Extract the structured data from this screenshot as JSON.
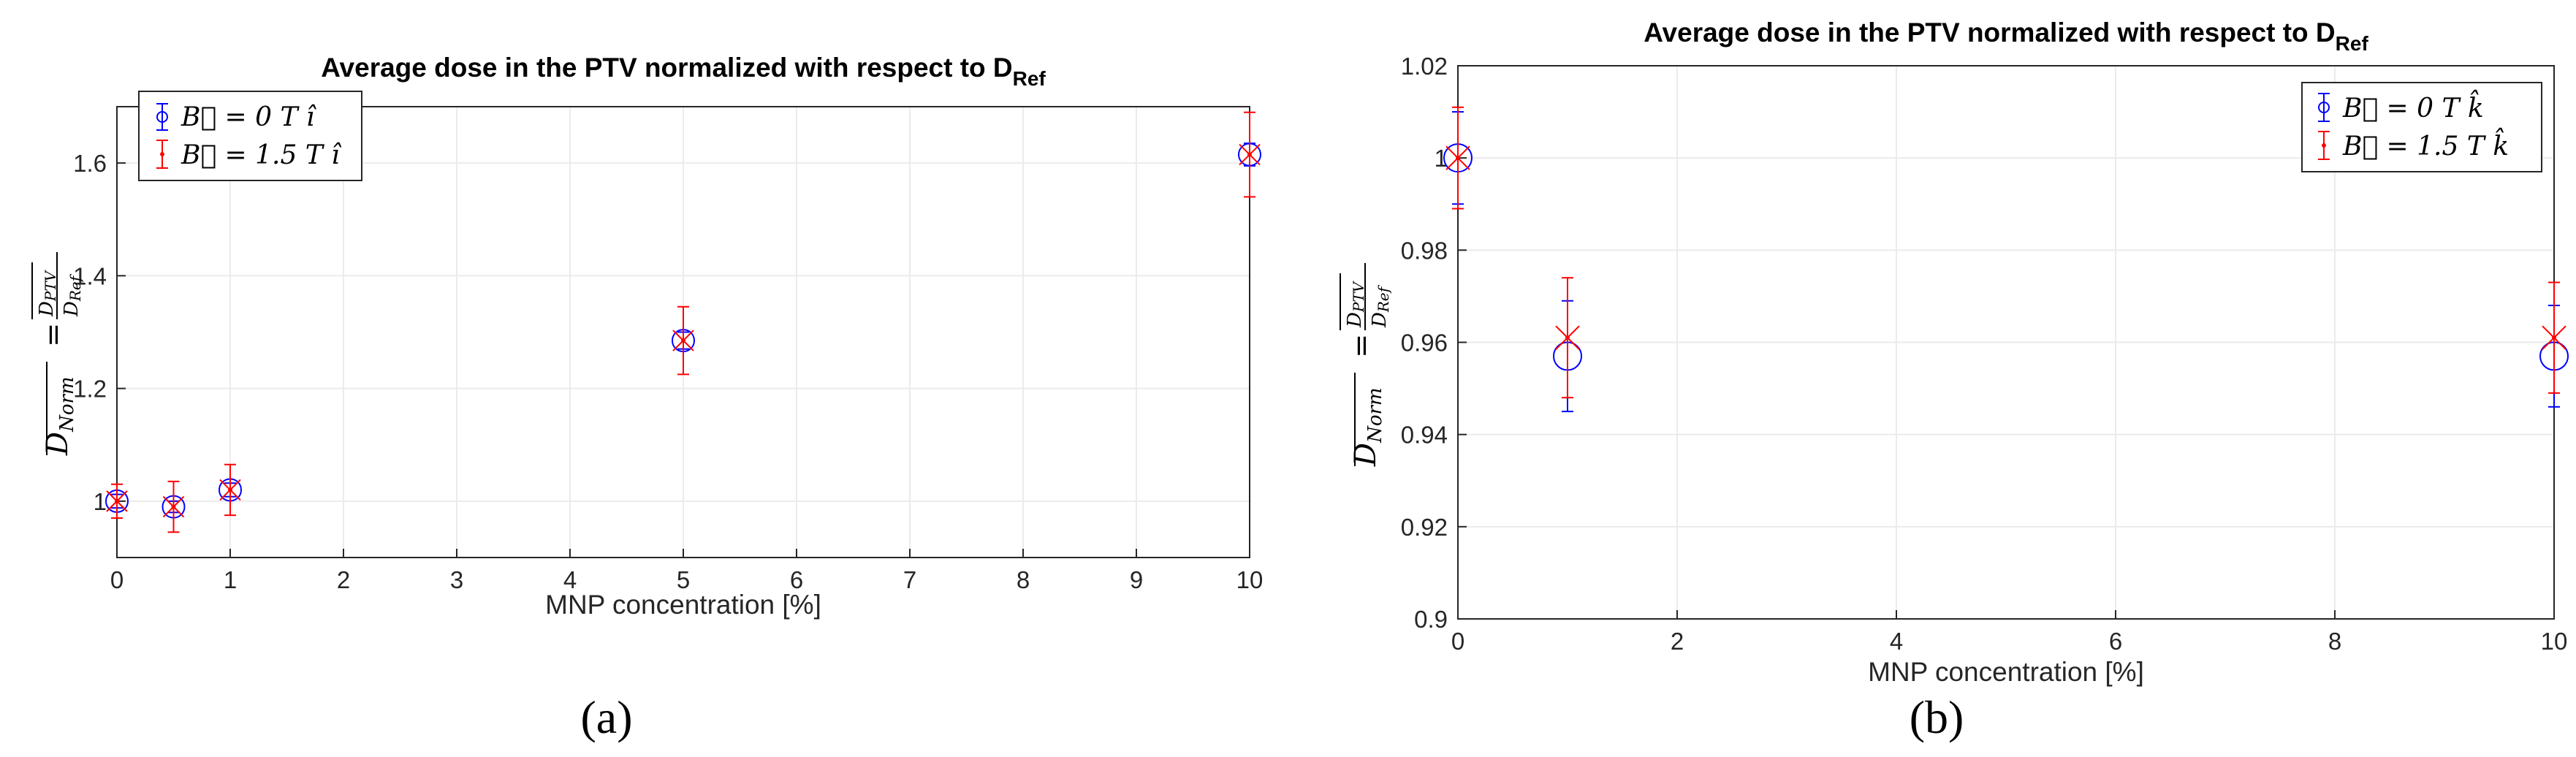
{
  "chart_data": [
    {
      "type": "scatter",
      "panel_label": "(a)",
      "title": "Average dose in the PTV normalized with respect to D",
      "title_sub": "Ref",
      "xlabel": "MNP concentration [%]",
      "ylabel_main": "D",
      "ylabel_main_sub": "Norm",
      "ylabel_eq": "=",
      "ylabel_frac_num": "D",
      "ylabel_frac_num_sub": "PTV",
      "ylabel_frac_den": "D",
      "ylabel_frac_den_sub": "Ref",
      "xlim": [
        0,
        10
      ],
      "ylim": [
        0.9,
        1.7
      ],
      "xticks": [
        0,
        1,
        2,
        3,
        4,
        5,
        6,
        7,
        8,
        9,
        10
      ],
      "yticks": [
        1,
        1.2,
        1.4,
        1.6
      ],
      "ytick_labels": [
        "1",
        "1.2",
        "1.4",
        "1.6"
      ],
      "grid": true,
      "legend_position": "top-left",
      "series": [
        {
          "name": "B = 0 T î",
          "legend_label": "B⃗ = 0 T î",
          "color": "#0000ff",
          "marker": "circle",
          "x": [
            0,
            0.5,
            1,
            5,
            10
          ],
          "y": [
            1.0,
            0.99,
            1.02,
            1.285,
            1.615
          ],
          "err": [
            0.012,
            0.01,
            0.012,
            0.015,
            0.02
          ]
        },
        {
          "name": "B = 1.5 T î",
          "legend_label": "B⃗ = 1.5 T î",
          "color": "#ff0000",
          "marker": "x",
          "x": [
            0,
            0.5,
            1,
            5,
            10
          ],
          "y": [
            1.0,
            0.99,
            1.02,
            1.285,
            1.615
          ],
          "err": [
            0.03,
            0.045,
            0.045,
            0.06,
            0.075
          ]
        }
      ]
    },
    {
      "type": "scatter",
      "panel_label": "(b)",
      "title": "Average dose in the PTV normalized with respect to D",
      "title_sub": "Ref",
      "xlabel": "MNP concentration [%]",
      "ylabel_main": "D",
      "ylabel_main_sub": "Norm",
      "ylabel_eq": "=",
      "ylabel_frac_num": "D",
      "ylabel_frac_num_sub": "PTV",
      "ylabel_frac_den": "D",
      "ylabel_frac_den_sub": "Ref",
      "xlim": [
        0,
        10
      ],
      "ylim": [
        0.9,
        1.02
      ],
      "xticks": [
        0,
        2,
        4,
        6,
        8,
        10
      ],
      "yticks": [
        0.9,
        0.92,
        0.94,
        0.96,
        0.98,
        1.0,
        1.02
      ],
      "ytick_labels": [
        "0.9",
        "0.92",
        "0.94",
        "0.96",
        "0.98",
        "1",
        "1.02"
      ],
      "grid": true,
      "legend_position": "top-right",
      "series": [
        {
          "name": "B = 0 T k̂",
          "legend_label": "B⃗ = 0 T k̂",
          "color": "#0000ff",
          "marker": "circle",
          "x": [
            0,
            1,
            10
          ],
          "y": [
            1.0,
            0.957,
            0.957
          ],
          "err": [
            0.01,
            0.012,
            0.011
          ]
        },
        {
          "name": "B = 1.5 T k̂",
          "legend_label": "B⃗ = 1.5 T k̂",
          "color": "#ff0000",
          "marker": "x",
          "x": [
            0,
            1,
            10
          ],
          "y": [
            1.0,
            0.961,
            0.961
          ],
          "err": [
            0.011,
            0.013,
            0.012
          ]
        }
      ]
    }
  ]
}
